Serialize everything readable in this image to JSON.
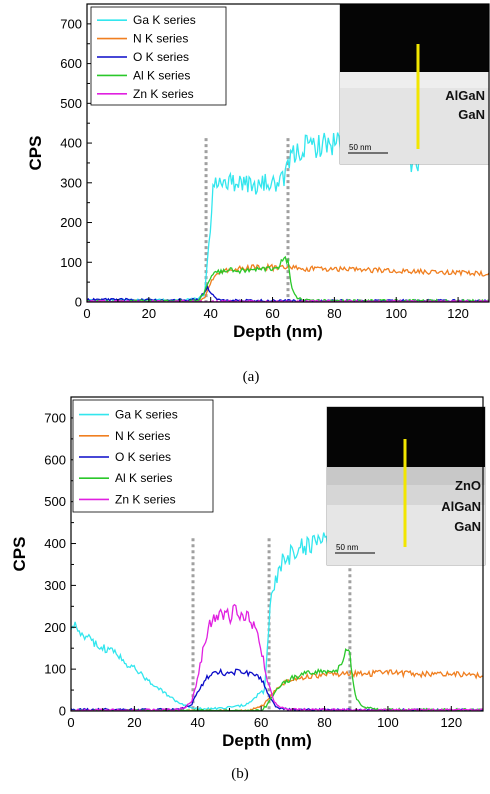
{
  "chart_data": [
    {
      "type": "line",
      "caption": "(a)",
      "xlabel": "Depth (nm)",
      "ylabel": "CPS",
      "xlim": [
        0,
        130
      ],
      "ylim": [
        0,
        750
      ],
      "xticks": [
        0,
        20,
        40,
        60,
        80,
        100,
        120
      ],
      "yticks": [
        0,
        100,
        200,
        300,
        400,
        500,
        600,
        700
      ],
      "legend_position": "top-left",
      "grid": false,
      "dashed_markers": [
        38.5,
        65
      ],
      "series": [
        {
          "name": "Ga K series",
          "color": "#33e6ee",
          "x": [
            0,
            10,
            20,
            30,
            36,
            38,
            39.5,
            41,
            43,
            46,
            50,
            54,
            58,
            62,
            64,
            65.5,
            67,
            70,
            75,
            80,
            85,
            90,
            95,
            100,
            103,
            105,
            110,
            115,
            120,
            125,
            130
          ],
          "y": [
            5,
            5,
            5,
            5,
            8,
            20,
            150,
            300,
            310,
            300,
            305,
            290,
            300,
            295,
            310,
            360,
            370,
            390,
            395,
            400,
            415,
            425,
            410,
            395,
            385,
            335,
            390,
            420,
            400,
            400,
            410
          ]
        },
        {
          "name": "N K series",
          "color": "#f07f20",
          "x": [
            0,
            10,
            20,
            30,
            36,
            38,
            40,
            42,
            46,
            50,
            55,
            60,
            65,
            70,
            75,
            80,
            85,
            90,
            95,
            100,
            105,
            110,
            115,
            120,
            125,
            130
          ],
          "y": [
            0,
            0,
            0,
            0,
            2,
            10,
            50,
            75,
            82,
            85,
            88,
            87,
            85,
            84,
            83,
            82,
            82,
            80,
            80,
            78,
            77,
            76,
            75,
            74,
            72,
            70
          ]
        },
        {
          "name": "O K series",
          "color": "#0a0ac8",
          "x": [
            0,
            10,
            20,
            30,
            36,
            38,
            39,
            40,
            42,
            46,
            60,
            80,
            100,
            130
          ],
          "y": [
            6,
            6,
            5,
            5,
            6,
            25,
            38,
            22,
            6,
            4,
            3,
            3,
            3,
            3
          ]
        },
        {
          "name": "Al K series",
          "color": "#2ac82a",
          "x": [
            0,
            10,
            20,
            30,
            36,
            38,
            40,
            42,
            45,
            50,
            55,
            60,
            62,
            64,
            65,
            66,
            68,
            70,
            80,
            100,
            130
          ],
          "y": [
            2,
            2,
            2,
            2,
            3,
            25,
            65,
            75,
            80,
            78,
            82,
            85,
            90,
            110,
            100,
            40,
            10,
            5,
            3,
            3,
            3
          ]
        },
        {
          "name": "Zn K series",
          "color": "#e020e0",
          "x": [
            0,
            30,
            60,
            90,
            130
          ],
          "y": [
            1,
            1,
            1,
            1,
            1
          ]
        }
      ],
      "inset": {
        "labels": [
          "AlGaN",
          "GaN"
        ],
        "scale_bar": "50 nm"
      }
    },
    {
      "type": "line",
      "caption": "(b)",
      "xlabel": "Depth (nm)",
      "ylabel": "CPS",
      "xlim": [
        0,
        130
      ],
      "ylim": [
        0,
        750
      ],
      "xticks": [
        0,
        20,
        40,
        60,
        80,
        100,
        120
      ],
      "yticks": [
        0,
        100,
        200,
        300,
        400,
        500,
        600,
        700
      ],
      "legend_position": "top-left",
      "grid": false,
      "dashed_markers": [
        38.5,
        62.5,
        88
      ],
      "series": [
        {
          "name": "Ga K series",
          "color": "#33e6ee",
          "x": [
            0,
            2,
            5,
            10,
            15,
            20,
            25,
            30,
            35,
            40,
            45,
            50,
            55,
            58,
            60,
            61,
            62,
            63,
            65,
            68,
            70,
            75,
            80,
            85,
            87,
            88
          ],
          "y": [
            195,
            200,
            175,
            155,
            130,
            100,
            70,
            40,
            15,
            5,
            5,
            8,
            15,
            30,
            50,
            40,
            150,
            260,
            330,
            380,
            370,
            400,
            410,
            420,
            390,
            400
          ]
        },
        {
          "name": "N K series",
          "color": "#f07f20",
          "x": [
            0,
            30,
            55,
            60,
            62,
            64,
            66,
            68,
            70,
            75,
            80,
            85,
            88,
            90,
            95,
            100,
            105,
            110,
            115,
            120,
            125,
            130
          ],
          "y": [
            0,
            0,
            0,
            10,
            25,
            45,
            60,
            70,
            75,
            82,
            88,
            90,
            90,
            88,
            90,
            92,
            90,
            88,
            88,
            88,
            86,
            85
          ]
        },
        {
          "name": "O K series",
          "color": "#0a0ac8",
          "x": [
            0,
            30,
            35,
            38,
            40,
            43,
            46,
            50,
            54,
            58,
            60,
            62,
            63,
            64,
            66,
            70,
            90,
            130
          ],
          "y": [
            3,
            3,
            5,
            15,
            45,
            80,
            95,
            90,
            95,
            85,
            80,
            40,
            30,
            15,
            5,
            3,
            2,
            2
          ]
        },
        {
          "name": "Al K series",
          "color": "#2ac82a",
          "x": [
            0,
            60,
            62,
            64,
            66,
            70,
            75,
            80,
            84,
            86,
            87,
            88,
            89,
            90,
            92,
            95,
            100,
            130
          ],
          "y": [
            0,
            0,
            15,
            40,
            60,
            80,
            90,
            95,
            100,
            120,
            160,
            130,
            70,
            30,
            10,
            5,
            3,
            3
          ]
        },
        {
          "name": "Zn K series",
          "color": "#e020e0",
          "x": [
            0,
            30,
            35,
            38,
            40,
            42,
            44,
            46,
            48,
            50,
            52,
            54,
            56,
            58,
            60,
            62,
            64,
            66,
            70,
            90,
            130
          ],
          "y": [
            2,
            2,
            5,
            20,
            80,
            160,
            210,
            230,
            235,
            225,
            240,
            230,
            220,
            200,
            150,
            70,
            25,
            8,
            3,
            2,
            2
          ]
        }
      ],
      "inset": {
        "labels": [
          "ZnO",
          "AlGaN",
          "GaN"
        ],
        "scale_bar": "50 nm"
      }
    }
  ]
}
